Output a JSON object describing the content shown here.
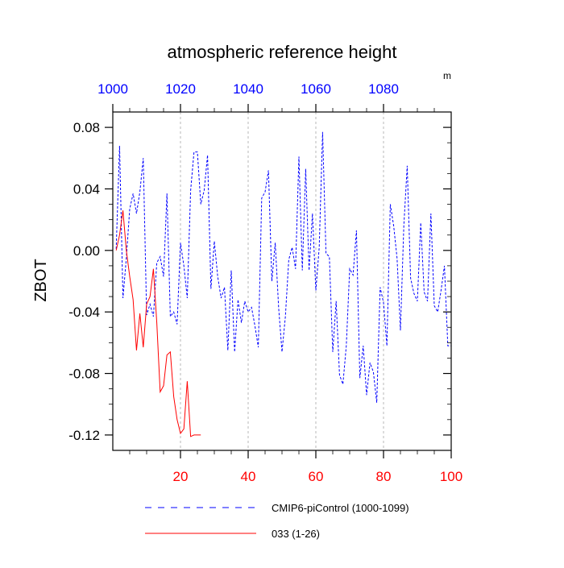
{
  "chart_data": {
    "type": "line",
    "title": "atmospheric reference height",
    "units": "m",
    "ylabel": "ZBOT",
    "xlim": [
      0,
      100
    ],
    "ylim": [
      -0.13,
      0.09
    ],
    "yticks": [
      0.08,
      0.04,
      0.0,
      -0.04,
      -0.08,
      -0.12
    ],
    "ytick_labels": [
      "0.08",
      "0.04",
      "0.00",
      "-0.04",
      "-0.08",
      "-0.12"
    ],
    "bottom_xticks": [
      20,
      40,
      60,
      80,
      100
    ],
    "bottom_xtick_labels": [
      "20",
      "40",
      "60",
      "80",
      "100"
    ],
    "top_xticks": [
      0,
      20,
      40,
      60,
      80
    ],
    "top_xtick_labels": [
      "1000",
      "1020",
      "1040",
      "1060",
      "1080"
    ],
    "grid": "vertical dashed lines at x=20,40,60,80",
    "legend_position": "below plot",
    "series": [
      {
        "name": "CMIP6-piControl (1000-1099)",
        "color": "#0000ff",
        "style": "dashed",
        "x": [
          1,
          2,
          3,
          4,
          5,
          6,
          7,
          8,
          9,
          10,
          11,
          12,
          13,
          14,
          15,
          16,
          17,
          18,
          19,
          20,
          21,
          22,
          23,
          24,
          25,
          26,
          27,
          28,
          29,
          30,
          31,
          32,
          33,
          34,
          35,
          36,
          37,
          38,
          39,
          40,
          41,
          42,
          43,
          44,
          45,
          46,
          47,
          48,
          49,
          50,
          51,
          52,
          53,
          54,
          55,
          56,
          57,
          58,
          59,
          60,
          61,
          62,
          63,
          64,
          65,
          66,
          67,
          68,
          69,
          70,
          71,
          72,
          73,
          74,
          75,
          76,
          77,
          78,
          79,
          80,
          81,
          82,
          83,
          84,
          85,
          86,
          87,
          88,
          89,
          90,
          91,
          92,
          93,
          94,
          95,
          96,
          97,
          98,
          99,
          100
        ],
        "values": [
          0.001,
          0.068,
          -0.031,
          -0.005,
          0.027,
          0.037,
          0.024,
          0.038,
          0.06,
          -0.042,
          -0.035,
          -0.043,
          -0.008,
          -0.004,
          -0.017,
          0.037,
          -0.043,
          -0.04,
          -0.048,
          0.005,
          -0.01,
          -0.031,
          0.039,
          0.064,
          0.064,
          0.03,
          0.039,
          0.062,
          -0.025,
          0.006,
          -0.017,
          -0.031,
          -0.024,
          -0.065,
          -0.013,
          -0.066,
          -0.032,
          -0.047,
          -0.033,
          -0.04,
          -0.037,
          -0.049,
          -0.063,
          0.034,
          0.038,
          0.052,
          -0.02,
          0.005,
          -0.037,
          -0.066,
          -0.043,
          -0.006,
          0.002,
          -0.012,
          0.061,
          -0.013,
          0.053,
          -0.013,
          0.024,
          -0.026,
          0.002,
          0.077,
          -0.002,
          -0.004,
          -0.066,
          -0.033,
          -0.081,
          -0.087,
          -0.062,
          -0.012,
          -0.016,
          0.013,
          -0.083,
          -0.062,
          -0.094,
          -0.073,
          -0.079,
          -0.099,
          -0.024,
          -0.034,
          -0.062,
          0.03,
          0.016,
          -0.005,
          -0.052,
          0.016,
          0.055,
          -0.018,
          -0.028,
          -0.033,
          0.018,
          -0.027,
          -0.033,
          0.024,
          -0.036,
          -0.04,
          -0.026,
          -0.01,
          -0.062,
          -0.062
        ]
      },
      {
        "name": "033 (1-26)",
        "color": "#ff0000",
        "style": "solid",
        "x": [
          1,
          2,
          3,
          4,
          5,
          6,
          7,
          8,
          9,
          10,
          11,
          12,
          13,
          14,
          15,
          16,
          17,
          18,
          19,
          20,
          21,
          22,
          23,
          24,
          25,
          26
        ],
        "values": [
          0.0,
          0.01,
          0.026,
          0.0,
          -0.017,
          -0.032,
          -0.065,
          -0.041,
          -0.063,
          -0.035,
          -0.03,
          -0.012,
          -0.047,
          -0.092,
          -0.088,
          -0.068,
          -0.066,
          -0.095,
          -0.11,
          -0.119,
          -0.116,
          -0.085,
          -0.121,
          -0.12,
          -0.12,
          -0.12
        ]
      }
    ]
  }
}
